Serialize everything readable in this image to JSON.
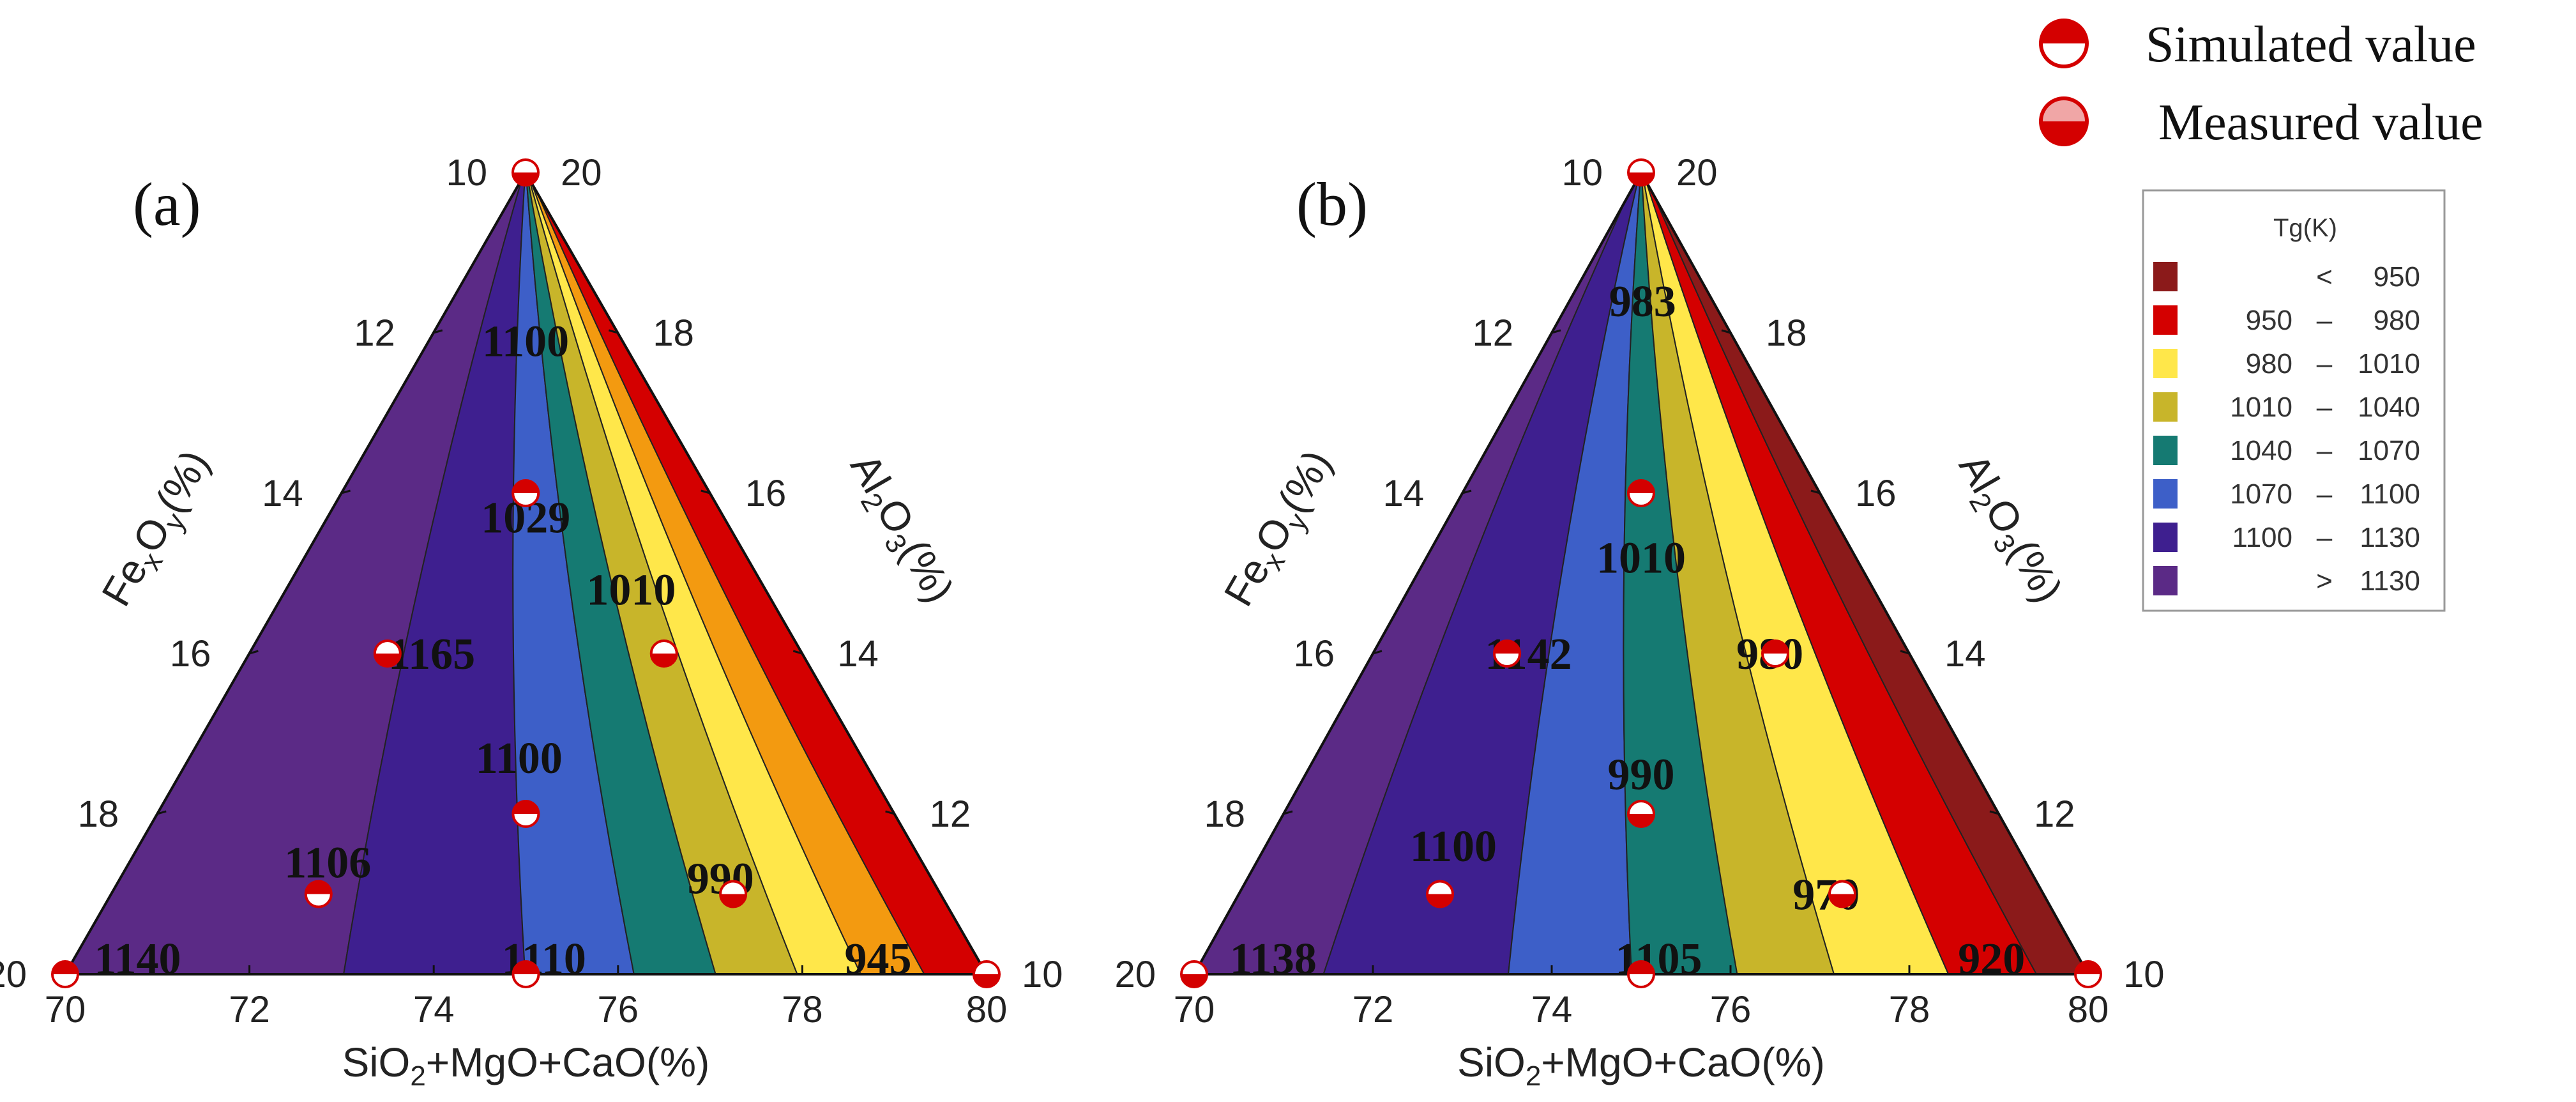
{
  "legend": {
    "simulated_label": "Simulated value",
    "measured_label": "Measured value"
  },
  "colorbar": {
    "title": "Tg(K)",
    "entries": [
      {
        "op": "<",
        "lo": "",
        "hi": "950",
        "color": "#8b1a1a"
      },
      {
        "op": "–",
        "lo": "950",
        "hi": "980",
        "color": "#d40000"
      },
      {
        "op": "–",
        "lo": "980",
        "hi": "1010",
        "color": "#ffe74a"
      },
      {
        "op": "–",
        "lo": "1010",
        "hi": "1040",
        "color": "#c8b52a"
      },
      {
        "op": "–",
        "lo": "1040",
        "hi": "1070",
        "color": "#157a72"
      },
      {
        "op": "–",
        "lo": "1070",
        "hi": "1100",
        "color": "#3d5fc8"
      },
      {
        "op": "–",
        "lo": "1100",
        "hi": "1130",
        "color": "#3e1f8f"
      },
      {
        "op": ">",
        "lo": "",
        "hi": "1130",
        "color": "#5b2a86"
      }
    ]
  },
  "chart_data": [
    {
      "type": "ternary-contour",
      "panel": "(a)",
      "bottom_axis": {
        "label_main": "SiO",
        "label_rest": [
          "2",
          "+MgO+CaO(%)"
        ],
        "ticks": [
          "70",
          "72",
          "74",
          "76",
          "78",
          "80"
        ],
        "range": [
          70,
          80
        ]
      },
      "left_axis": {
        "label_main": "Fe",
        "label_rest": [
          "x",
          "O",
          "y",
          "(%)"
        ],
        "ticks": [
          "10",
          "12",
          "14",
          "16",
          "18",
          "20"
        ],
        "range": [
          10,
          20
        ]
      },
      "right_axis": {
        "label_main": "Al",
        "label_rest": [
          "2",
          "O",
          "3",
          "(%)"
        ],
        "ticks": [
          "20",
          "18",
          "16",
          "14",
          "12",
          "10"
        ],
        "range": [
          10,
          20
        ]
      },
      "band_colors": [
        "#5b2a86",
        "#3e1f8f",
        "#3d5fc8",
        "#157a72",
        "#c8b52a",
        "#ffe74a",
        "#f39a10",
        "#d40000"
      ],
      "band_boundaries_at_bottom": [
        73.0,
        75.0,
        76.2,
        77.1,
        78.0,
        78.7,
        79.4
      ],
      "annotations": [
        {
          "text": "1100",
          "x": 75.0,
          "fe": 12.1
        },
        {
          "text": "1029",
          "x": 75.0,
          "fe": 14.3
        },
        {
          "text": "1165",
          "x": 73.3,
          "fe": 16.0
        },
        {
          "text": "1010",
          "x": 77.2,
          "fe": 15.2
        },
        {
          "text": "1100",
          "x": 74.9,
          "fe": 17.3
        },
        {
          "text": "1106",
          "x": 72.5,
          "fe": 18.6
        },
        {
          "text": "990",
          "x": 77.4,
          "fe": 18.8
        },
        {
          "text": "1140",
          "x": 70.7,
          "fe": 19.8
        },
        {
          "text": "1110",
          "x": 75.2,
          "fe": 19.8
        },
        {
          "text": "945",
          "x": 78.9,
          "fe": 19.8
        }
      ],
      "points": [
        {
          "x": 75.0,
          "fe": 10.0,
          "kind": "measured"
        },
        {
          "x": 75.0,
          "fe": 14.0,
          "kind": "simulated"
        },
        {
          "x": 72.5,
          "fe": 16.0,
          "kind": "measured"
        },
        {
          "x": 77.5,
          "fe": 16.0,
          "kind": "measured"
        },
        {
          "x": 75.0,
          "fe": 18.0,
          "kind": "simulated"
        },
        {
          "x": 72.5,
          "fe": 19.0,
          "kind": "simulated"
        },
        {
          "x": 77.5,
          "fe": 19.0,
          "kind": "measured"
        },
        {
          "x": 70.0,
          "fe": 20.0,
          "kind": "simulated"
        },
        {
          "x": 75.0,
          "fe": 20.0,
          "kind": "simulated"
        },
        {
          "x": 80.0,
          "fe": 20.0,
          "kind": "measured"
        }
      ]
    },
    {
      "type": "ternary-contour",
      "panel": "(b)",
      "bottom_axis": {
        "label_main": "SiO",
        "label_rest": [
          "2",
          "+MgO+CaO(%)"
        ],
        "ticks": [
          "70",
          "72",
          "74",
          "76",
          "78",
          "80"
        ],
        "range": [
          70,
          80
        ]
      },
      "left_axis": {
        "label_main": "Fe",
        "label_rest": [
          "x",
          "O",
          "y",
          "(%)"
        ],
        "ticks": [
          "10",
          "12",
          "14",
          "16",
          "18",
          "20"
        ],
        "range": [
          10,
          20
        ]
      },
      "right_axis": {
        "label_main": "Al",
        "label_rest": [
          "2",
          "O",
          "3",
          "(%)"
        ],
        "ticks": [
          "20",
          "18",
          "16",
          "14",
          "12",
          "10"
        ],
        "range": [
          10,
          20
        ]
      },
      "band_colors": [
        "#5b2a86",
        "#3e1f8f",
        "#3d5fc8",
        "#157a72",
        "#c8b52a",
        "#ffe74a",
        "#d40000",
        "#8b1a1a"
      ],
      "band_boundaries_at_bottom": [
        71.4,
        73.5,
        74.9,
        76.1,
        77.2,
        78.5,
        79.5
      ],
      "annotations": [
        {
          "text": "983",
          "x": 75.1,
          "fe": 11.6
        },
        {
          "text": "1010",
          "x": 75.0,
          "fe": 14.8
        },
        {
          "text": "1142",
          "x": 72.9,
          "fe": 16.0
        },
        {
          "text": "980",
          "x": 77.4,
          "fe": 16.0
        },
        {
          "text": "990",
          "x": 75.0,
          "fe": 17.5
        },
        {
          "text": "1100",
          "x": 72.5,
          "fe": 18.4
        },
        {
          "text": "970",
          "x": 77.3,
          "fe": 19.0
        },
        {
          "text": "1138",
          "x": 70.8,
          "fe": 19.8
        },
        {
          "text": "1105",
          "x": 75.2,
          "fe": 19.8
        },
        {
          "text": "920",
          "x": 79.0,
          "fe": 19.8
        }
      ],
      "points": [
        {
          "x": 75.0,
          "fe": 10.0,
          "kind": "measured"
        },
        {
          "x": 75.0,
          "fe": 14.0,
          "kind": "simulated"
        },
        {
          "x": 72.5,
          "fe": 16.0,
          "kind": "simulated"
        },
        {
          "x": 77.5,
          "fe": 16.0,
          "kind": "simulated"
        },
        {
          "x": 75.0,
          "fe": 18.0,
          "kind": "measured"
        },
        {
          "x": 72.5,
          "fe": 19.0,
          "kind": "measured"
        },
        {
          "x": 77.5,
          "fe": 19.0,
          "kind": "measured"
        },
        {
          "x": 70.0,
          "fe": 20.0,
          "kind": "measured"
        },
        {
          "x": 75.0,
          "fe": 20.0,
          "kind": "simulated"
        },
        {
          "x": 80.0,
          "fe": 20.0,
          "kind": "simulated"
        }
      ]
    }
  ]
}
